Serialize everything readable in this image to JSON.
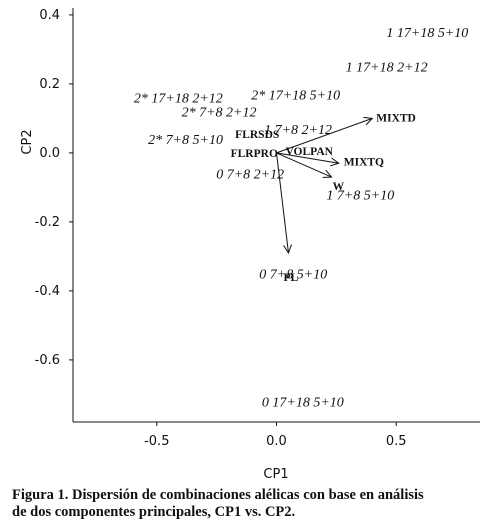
{
  "chart_data": {
    "type": "scatter",
    "title": "",
    "xlabel": "CP1",
    "ylabel": "CP2",
    "xlim": [
      -0.85,
      0.85
    ],
    "ylim": [
      -0.78,
      0.42
    ],
    "x_ticks": [
      -0.5,
      0.0,
      0.5
    ],
    "x_tick_labels": [
      "-0.5",
      "0.0",
      "0.5"
    ],
    "y_ticks": [
      0.4,
      0.2,
      0.0,
      -0.2,
      -0.4,
      -0.6
    ],
    "y_tick_labels": [
      "0.4",
      "0.2",
      "0.0",
      "-0.2",
      "-0.4",
      "-0.6"
    ],
    "grid": false,
    "points": [
      {
        "label": "1 17+18 5+10",
        "x": 0.63,
        "y": 0.35
      },
      {
        "label": "1 17+18 2+12",
        "x": 0.46,
        "y": 0.25
      },
      {
        "label": "2* 17+18 2+12",
        "x": -0.41,
        "y": 0.16
      },
      {
        "label": "2* 17+18 5+10",
        "x": 0.08,
        "y": 0.17
      },
      {
        "label": "2* 7+8 2+12",
        "x": -0.24,
        "y": 0.12
      },
      {
        "label": "1 7+8 2+12",
        "x": 0.09,
        "y": 0.07
      },
      {
        "label": "2* 7+8 5+10",
        "x": -0.38,
        "y": 0.04
      },
      {
        "label": "0 7+8 2+12",
        "x": -0.11,
        "y": -0.06
      },
      {
        "label": "1 7+8 5+10",
        "x": 0.35,
        "y": -0.12
      },
      {
        "label": "0 7+8 5+10",
        "x": 0.07,
        "y": -0.35
      },
      {
        "label": "0 17+18 5+10",
        "x": 0.11,
        "y": -0.72
      }
    ],
    "vectors": [
      {
        "label": "MIXTD",
        "x": 0.4,
        "y": 0.1
      },
      {
        "label": "MIXTQ",
        "x": 0.26,
        "y": -0.03
      },
      {
        "label": "W",
        "x": 0.23,
        "y": -0.07
      },
      {
        "label": "PL",
        "x": 0.05,
        "y": -0.29
      },
      {
        "label": "FLRSDS",
        "x": 0.02,
        "y": 0.02
      },
      {
        "label": "VOLPAN",
        "x": 0.05,
        "y": 0.005
      },
      {
        "label": "FLRPRO",
        "x": 0.01,
        "y": 0.005
      }
    ]
  },
  "caption": {
    "line1": "Figura 1. Dispersión de combinaciones alélicas con base en análisis",
    "line2": "de dos componentes principales, CP1 vs. CP2."
  }
}
